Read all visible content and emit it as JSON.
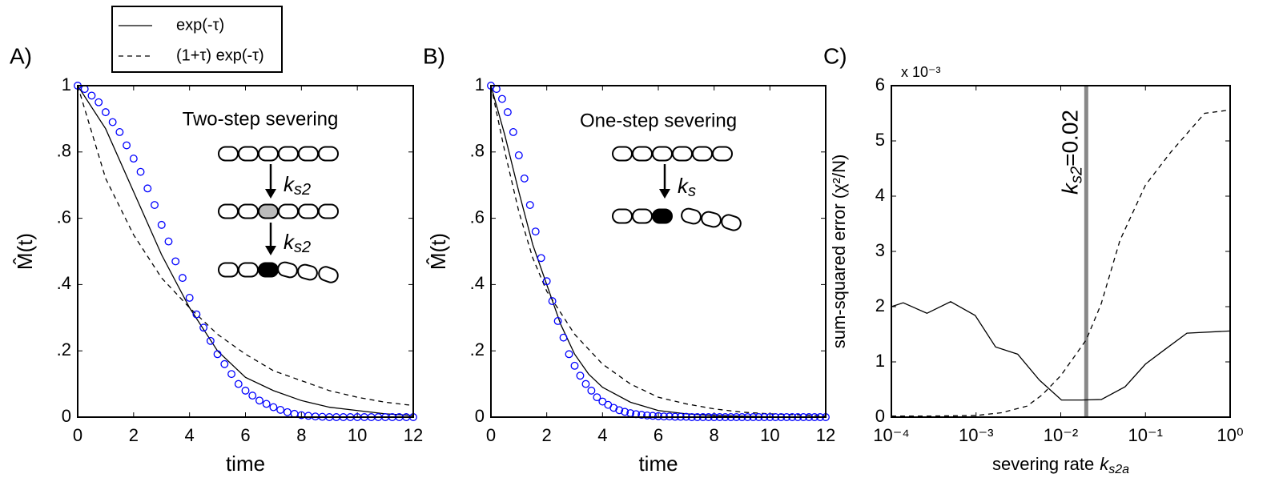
{
  "chart_data": [
    {
      "type": "line",
      "panel_label": "A)",
      "xlabel": "time",
      "ylabel": "M̂(t)",
      "xlim": [
        0,
        12
      ],
      "xticks": [
        0,
        2,
        4,
        6,
        8,
        10,
        12
      ],
      "ylim": [
        0,
        1
      ],
      "yticks": [
        0,
        {
          "value": 0.2,
          "label": ".2"
        },
        {
          "value": 0.4,
          "label": ".4"
        },
        {
          "value": 0.6,
          "label": ".6"
        },
        {
          "value": 0.8,
          "label": ".8"
        },
        1
      ],
      "annotations": {
        "title": "Two-step severing",
        "rate_symbol": "k",
        "rate_subscript": "s2"
      },
      "series": [
        {
          "name": "exp(-τ)",
          "linestyle": "solid",
          "color": "#000000",
          "x": [
            0,
            1,
            2,
            3,
            4,
            5,
            6,
            7,
            8,
            9,
            10,
            11,
            12
          ],
          "values": [
            1,
            0.87,
            0.68,
            0.49,
            0.33,
            0.2,
            0.12,
            0.08,
            0.05,
            0.03,
            0.02,
            0.01,
            0.005
          ]
        },
        {
          "name": "(1+τ) exp(-τ)",
          "linestyle": "dashed",
          "color": "#000000",
          "x": [
            0,
            1,
            2,
            3,
            4,
            5,
            6,
            7,
            8,
            9,
            10,
            11,
            12
          ],
          "values": [
            1,
            0.72,
            0.55,
            0.42,
            0.33,
            0.25,
            0.19,
            0.14,
            0.11,
            0.08,
            0.06,
            0.045,
            0.035
          ]
        },
        {
          "marker": "circle",
          "color": "#0000ff",
          "x": [
            0,
            0.25,
            0.5,
            0.75,
            1,
            1.25,
            1.5,
            1.75,
            2,
            2.25,
            2.5,
            2.75,
            3,
            3.25,
            3.5,
            3.75,
            4,
            4.25,
            4.5,
            4.75,
            5,
            5.25,
            5.5,
            5.75,
            6,
            6.25,
            6.5,
            6.75,
            7,
            7.25,
            7.5,
            7.75,
            8,
            8.25,
            8.5,
            8.75,
            9,
            9.25,
            9.5,
            9.75,
            10,
            10.25,
            10.5,
            10.75,
            11,
            11.25,
            11.5,
            11.75,
            12
          ],
          "values": [
            1,
            0.99,
            0.97,
            0.95,
            0.92,
            0.89,
            0.86,
            0.82,
            0.78,
            0.74,
            0.69,
            0.64,
            0.58,
            0.53,
            0.47,
            0.42,
            0.36,
            0.31,
            0.27,
            0.23,
            0.19,
            0.16,
            0.13,
            0.1,
            0.08,
            0.065,
            0.05,
            0.04,
            0.03,
            0.022,
            0.015,
            0.01,
            0.006,
            0.004,
            0.002,
            0.001,
            0,
            0,
            0,
            0,
            0,
            0,
            0,
            0,
            0,
            0,
            0,
            0,
            0
          ]
        }
      ]
    },
    {
      "type": "line",
      "panel_label": "B)",
      "xlabel": "time",
      "ylabel": "M̂(t)",
      "xlim": [
        0,
        12
      ],
      "xticks": [
        0,
        2,
        4,
        6,
        8,
        10,
        12
      ],
      "ylim": [
        0,
        1
      ],
      "yticks": [
        0,
        {
          "value": 0.2,
          "label": ".2"
        },
        {
          "value": 0.4,
          "label": ".4"
        },
        {
          "value": 0.6,
          "label": ".6"
        },
        {
          "value": 0.8,
          "label": ".8"
        },
        1
      ],
      "annotations": {
        "title": "One-step severing",
        "rate_symbol": "k",
        "rate_subscript": "s"
      },
      "series": [
        {
          "linestyle": "solid",
          "color": "#000000",
          "x": [
            0,
            0.5,
            1,
            1.5,
            2,
            2.5,
            3,
            3.5,
            4,
            5,
            6,
            7,
            8,
            10,
            12
          ],
          "values": [
            1,
            0.85,
            0.68,
            0.52,
            0.4,
            0.28,
            0.19,
            0.13,
            0.09,
            0.045,
            0.02,
            0.01,
            0.005,
            0.001,
            0
          ]
        },
        {
          "linestyle": "dashed",
          "color": "#000000",
          "x": [
            0,
            0.5,
            1,
            1.5,
            2,
            3,
            4,
            5,
            6,
            7,
            8,
            9,
            10,
            12
          ],
          "values": [
            1,
            0.8,
            0.62,
            0.48,
            0.38,
            0.25,
            0.16,
            0.1,
            0.06,
            0.04,
            0.025,
            0.015,
            0.01,
            0.004
          ]
        },
        {
          "marker": "circle",
          "color": "#0000ff",
          "x": [
            0,
            0.2,
            0.4,
            0.6,
            0.8,
            1,
            1.2,
            1.4,
            1.6,
            1.8,
            2,
            2.2,
            2.4,
            2.6,
            2.8,
            3,
            3.2,
            3.4,
            3.6,
            3.8,
            4,
            4.2,
            4.4,
            4.6,
            4.8,
            5,
            5.2,
            5.4,
            5.6,
            5.8,
            6,
            6.2,
            6.4,
            6.6,
            6.8,
            7,
            7.2,
            7.4,
            7.6,
            7.8,
            8,
            8.2,
            8.4,
            8.6,
            8.8,
            9,
            9.2,
            9.4,
            9.6,
            9.8,
            10,
            10.2,
            10.4,
            10.6,
            10.8,
            11,
            11.2,
            11.4,
            11.6,
            11.8,
            12
          ],
          "values": [
            1,
            0.99,
            0.96,
            0.92,
            0.86,
            0.79,
            0.72,
            0.64,
            0.56,
            0.48,
            0.41,
            0.35,
            0.29,
            0.24,
            0.19,
            0.155,
            0.125,
            0.1,
            0.08,
            0.06,
            0.047,
            0.037,
            0.028,
            0.021,
            0.016,
            0.012,
            0.009,
            0.007,
            0.005,
            0.004,
            0.003,
            0.002,
            0.002,
            0.001,
            0.001,
            0.001,
            0,
            0,
            0,
            0,
            0,
            0,
            0,
            0,
            0,
            0,
            0,
            0,
            0,
            0,
            0,
            0,
            0,
            0,
            0,
            0,
            0,
            0,
            0,
            0,
            0
          ]
        }
      ]
    },
    {
      "type": "line",
      "panel_label": "C)",
      "xscale": "log",
      "xlabel": "severing rate",
      "xlabel_symbol": "k",
      "xlabel_subscript": "s2a",
      "ylabel": "sum-squared error  (χ²/N)",
      "y_multiplier": "x 10⁻³",
      "xlim": [
        0.0001,
        1
      ],
      "xticks": [
        {
          "value": 0.0001,
          "label": "10⁻⁴"
        },
        {
          "value": 0.001,
          "label": "10⁻³"
        },
        {
          "value": 0.01,
          "label": "10⁻²"
        },
        {
          "value": 0.1,
          "label": "10⁻¹"
        },
        {
          "value": 1,
          "label": "10⁰"
        }
      ],
      "ylim": [
        0,
        6
      ],
      "yticks": [
        0,
        1,
        2,
        3,
        4,
        5,
        6
      ],
      "vline": {
        "x": 0.02,
        "color": "#888888",
        "label_symbol": "k",
        "label_subscript": "s2",
        "label_text": "=0.02"
      },
      "series": [
        {
          "linestyle": "solid",
          "color": "#000000",
          "x": [
            0.0001,
            0.000138,
            0.000263,
            0.000501,
            0.000977,
            0.0017,
            0.0031,
            0.0056,
            0.0102,
            0.0178,
            0.0302,
            0.0575,
            0.1,
            0.175,
            0.309,
            1
          ],
          "values": [
            2.0,
            2.07,
            1.88,
            2.09,
            1.84,
            1.27,
            1.14,
            0.67,
            0.31,
            0.31,
            0.32,
            0.55,
            0.96,
            1.24,
            1.52,
            1.56
          ]
        },
        {
          "linestyle": "dashed",
          "color": "#000000",
          "x": [
            0.0001,
            0.0003,
            0.001,
            0.002,
            0.004,
            0.006,
            0.01,
            0.02,
            0.03,
            0.05,
            0.1,
            0.2,
            0.5,
            1
          ],
          "values": [
            0.02,
            0.02,
            0.03,
            0.08,
            0.2,
            0.4,
            0.75,
            1.4,
            2.05,
            3.2,
            4.2,
            4.8,
            5.5,
            5.56
          ]
        }
      ]
    }
  ]
}
